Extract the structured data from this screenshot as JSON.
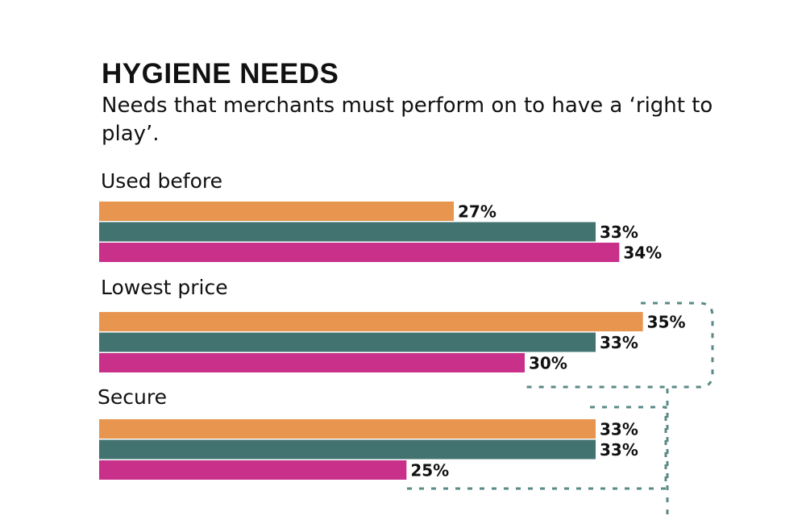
{
  "chart_data": {
    "type": "bar",
    "orientation": "horizontal",
    "title": "HYGIENE NEEDS",
    "subtitle": "Needs that merchants must perform on to have a ‘right to play’.",
    "categories": [
      "Used before",
      "Lowest price",
      "Secure"
    ],
    "series": [
      {
        "color": "#e8954f",
        "values": [
          27,
          35,
          33
        ],
        "value_labels": [
          "27%",
          "35%",
          "33%"
        ]
      },
      {
        "color": "#437370",
        "values": [
          33,
          33,
          33
        ],
        "value_labels": [
          "33%",
          "33%",
          "33%"
        ]
      },
      {
        "color": "#c8308a",
        "values": [
          34,
          30,
          25
        ],
        "value_labels": [
          "34%",
          "30%",
          "25%"
        ]
      }
    ],
    "xlim": [
      12,
      36
    ]
  }
}
